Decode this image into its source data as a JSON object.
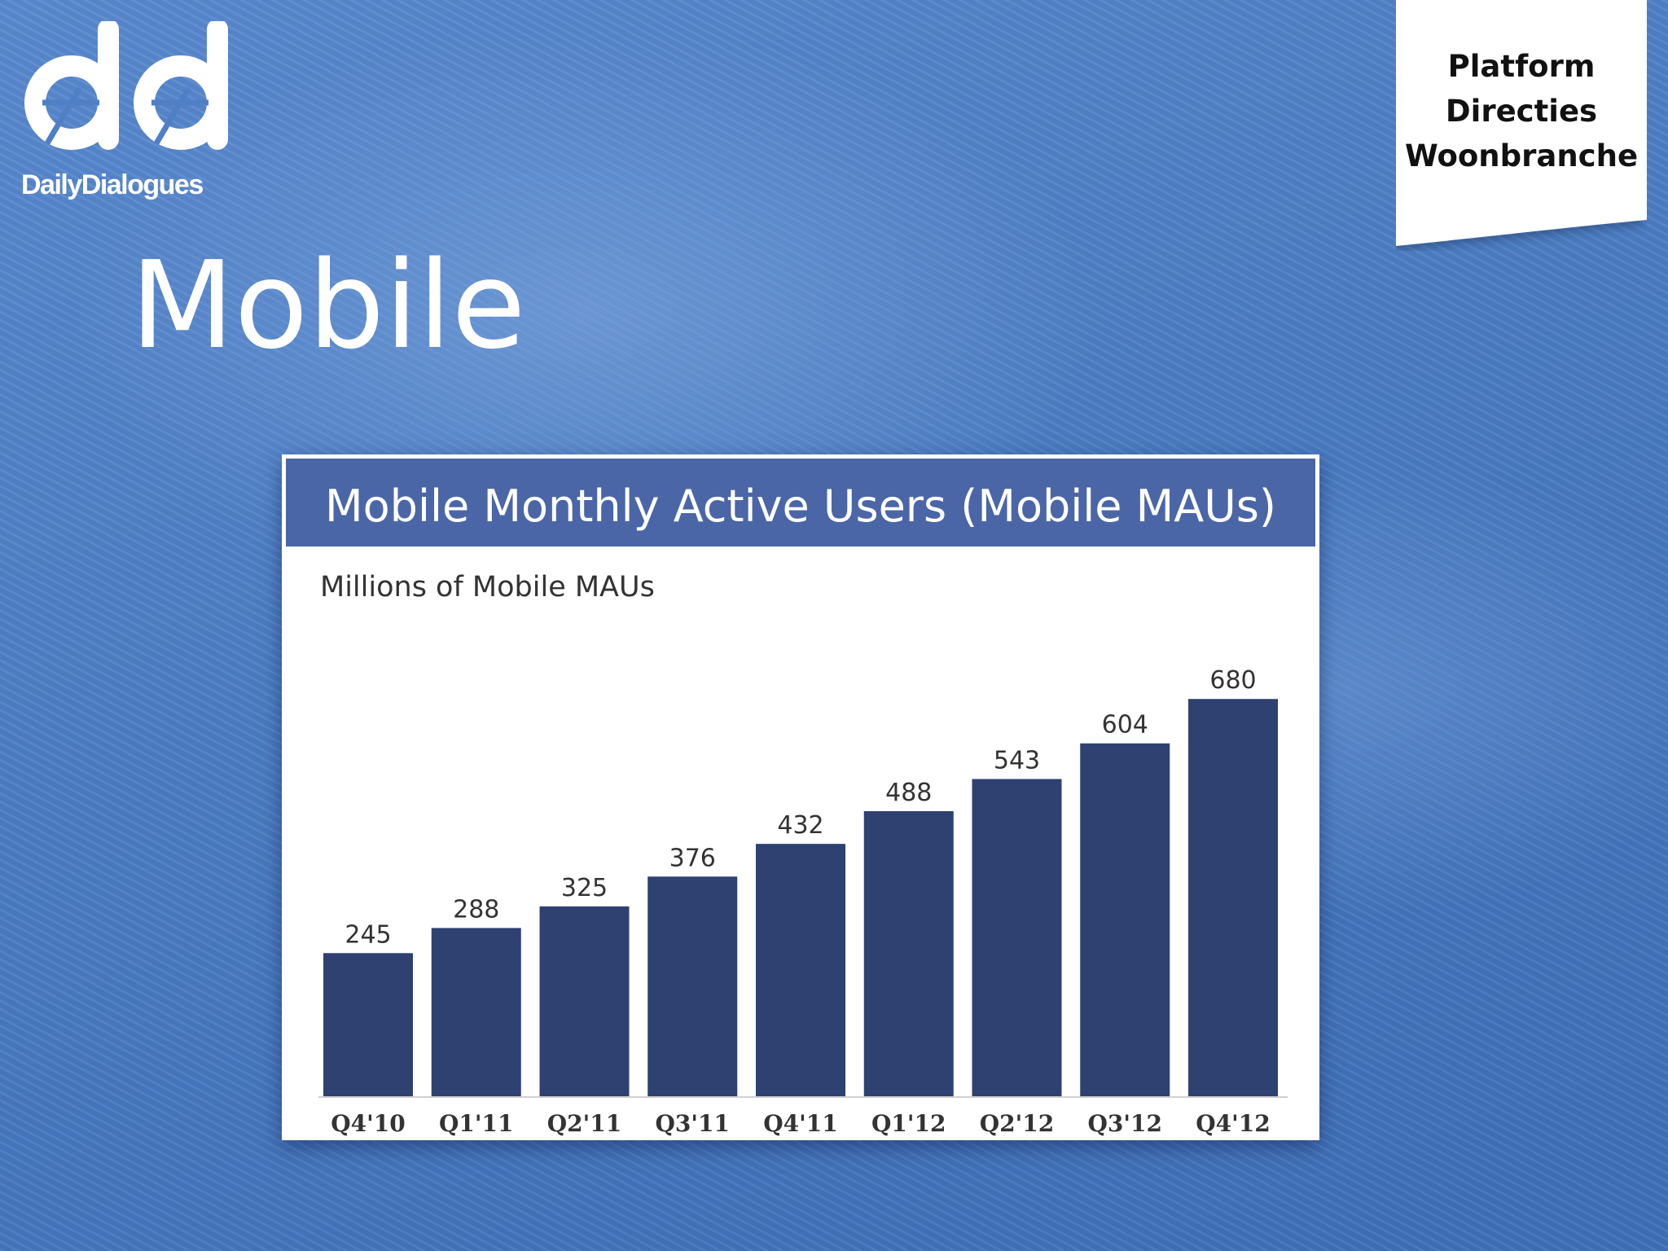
{
  "brand": {
    "logo_text": "DailyDialogues",
    "logo_color": "#ffffff"
  },
  "tag": {
    "lines": [
      "Platform",
      "Directies",
      "Woonbranche"
    ]
  },
  "slide": {
    "title": "Mobile"
  },
  "colors": {
    "bar": "#2f4170",
    "title_band": "#4a66a7",
    "axis_text": "#333333"
  },
  "chart_data": {
    "type": "bar",
    "title": "Mobile Monthly Active Users (Mobile MAUs)",
    "ylabel": "Millions of Mobile MAUs",
    "categories": [
      "Q4'10",
      "Q1'11",
      "Q2'11",
      "Q3'11",
      "Q4'11",
      "Q1'12",
      "Q2'12",
      "Q3'12",
      "Q4'12"
    ],
    "values": [
      245,
      288,
      325,
      376,
      432,
      488,
      543,
      604,
      680
    ],
    "ylim": [
      0,
      750
    ],
    "grid": false,
    "legend": "none"
  }
}
